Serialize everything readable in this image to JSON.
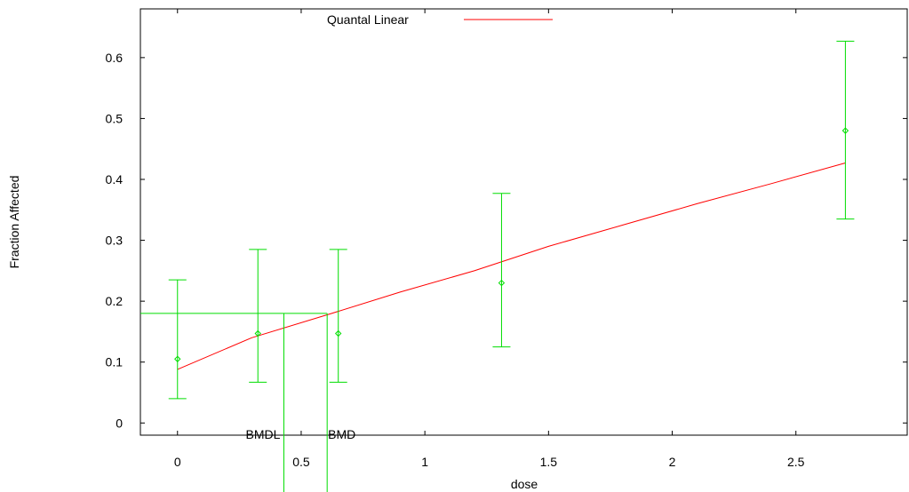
{
  "chart_data": {
    "type": "scatter",
    "title": "",
    "xlabel": "dose",
    "ylabel": "Fraction Affected",
    "xlim": [
      -0.15,
      2.95
    ],
    "ylim": [
      -0.02,
      0.68
    ],
    "grid": false,
    "legend_position": "top-center",
    "xticks": [
      0,
      0.5,
      1,
      1.5,
      2,
      2.5
    ],
    "xtick_labels": [
      "0",
      "0.5",
      "1",
      "1.5",
      "2",
      "2.5"
    ],
    "yticks": [
      0,
      0.1,
      0.2,
      0.3,
      0.4,
      0.5,
      0.6
    ],
    "ytick_labels": [
      "0",
      "0.1",
      "0.2",
      "0.3",
      "0.4",
      "0.5",
      "0.6"
    ],
    "series": [
      {
        "name": "Quantal Linear",
        "kind": "line",
        "color": "#ff0000",
        "x": [
          0,
          0.3,
          0.6,
          0.9,
          1.2,
          1.5,
          1.8,
          2.1,
          2.4,
          2.7
        ],
        "y": [
          0.088,
          0.14,
          0.177,
          0.215,
          0.25,
          0.29,
          0.325,
          0.36,
          0.393,
          0.427
        ]
      },
      {
        "kind": "points-with-errorbars",
        "color": "#00dd00",
        "x": [
          0,
          0.325,
          0.65,
          1.31,
          2.7
        ],
        "y": [
          0.105,
          0.147,
          0.147,
          0.23,
          0.48
        ],
        "lower": [
          0.04,
          0.067,
          0.067,
          0.125,
          0.335
        ],
        "upper": [
          0.235,
          0.285,
          0.285,
          0.377,
          0.627
        ]
      }
    ],
    "bmr_line": {
      "y": 0.18,
      "color": "#00dd00"
    },
    "annotations": [
      {
        "text": "BMDL",
        "x": 0.43
      },
      {
        "text": "BMD",
        "x": 0.605
      }
    ]
  }
}
